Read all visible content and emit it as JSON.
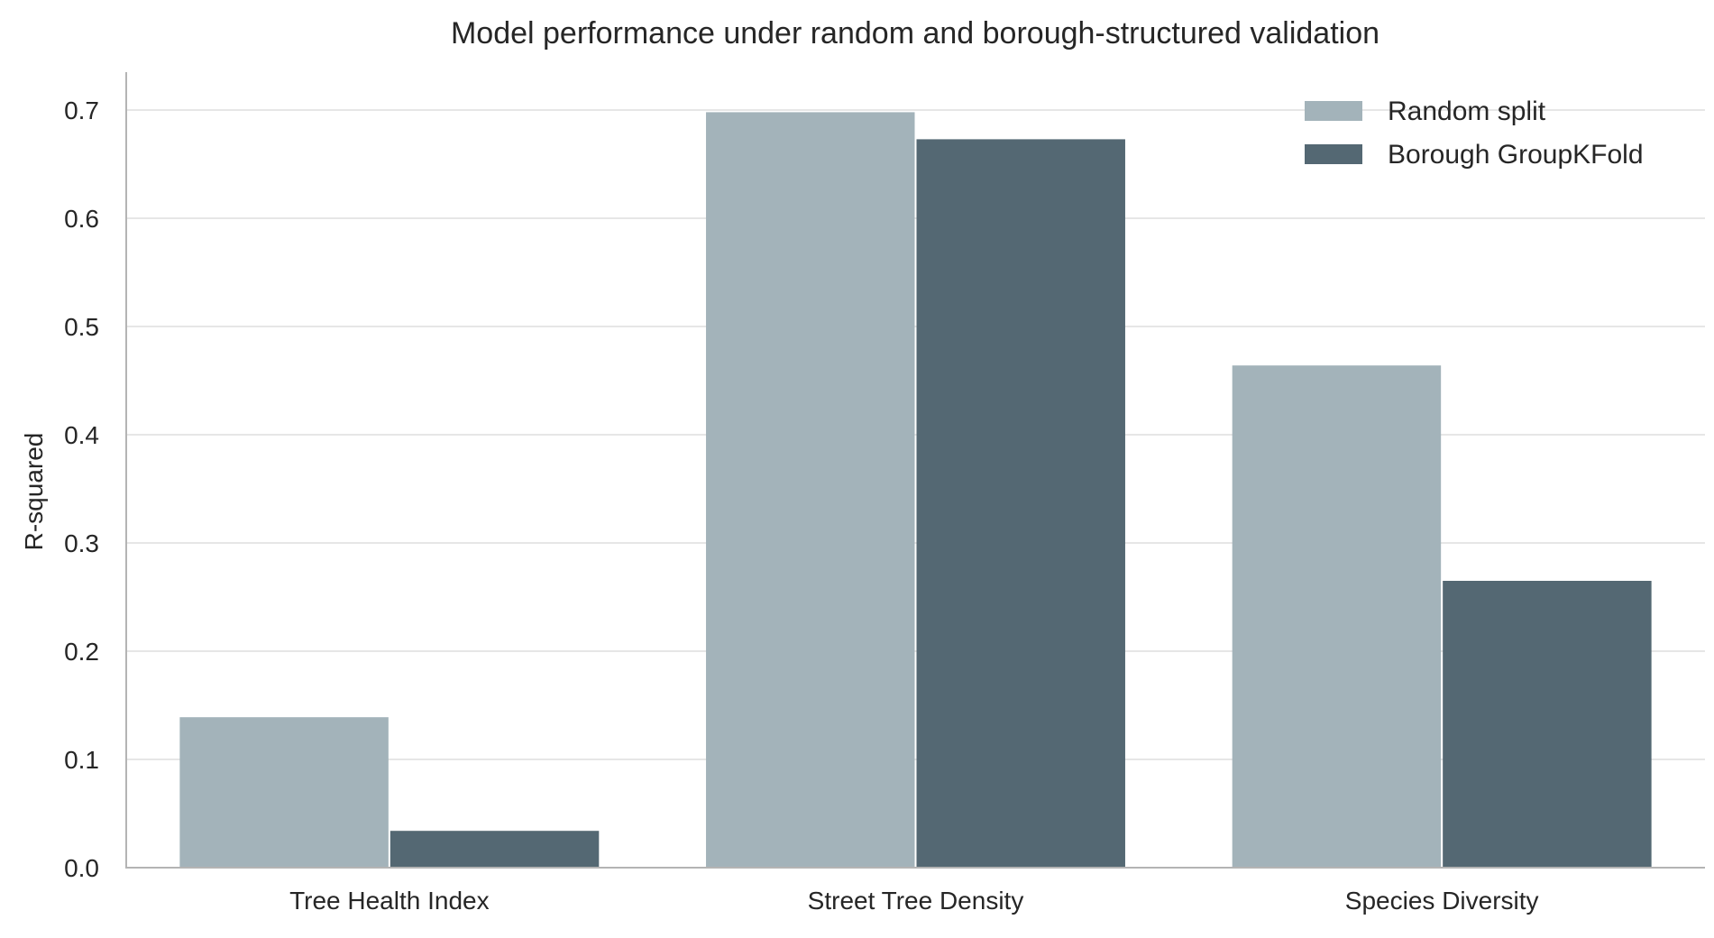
{
  "chart_data": {
    "type": "bar",
    "title": "Model performance under random and borough-structured validation",
    "xlabel": "",
    "ylabel": "R-squared",
    "categories": [
      "Tree Health Index",
      "Street Tree Density",
      "Species Diversity"
    ],
    "series": [
      {
        "name": "Random split",
        "values": [
          0.139,
          0.698,
          0.464
        ],
        "color": "#a3b3ba"
      },
      {
        "name": "Borough GroupKFold",
        "values": [
          0.034,
          0.673,
          0.265
        ],
        "color": "#546873"
      }
    ],
    "ylim": [
      0,
      0.735
    ],
    "yticks": [
      0.0,
      0.1,
      0.2,
      0.3,
      0.4,
      0.5,
      0.6,
      0.7
    ],
    "ytick_labels": [
      "0.0",
      "0.1",
      "0.2",
      "0.3",
      "0.4",
      "0.5",
      "0.6",
      "0.7"
    ],
    "grid": "horizontal",
    "legend_position": "top-right"
  }
}
